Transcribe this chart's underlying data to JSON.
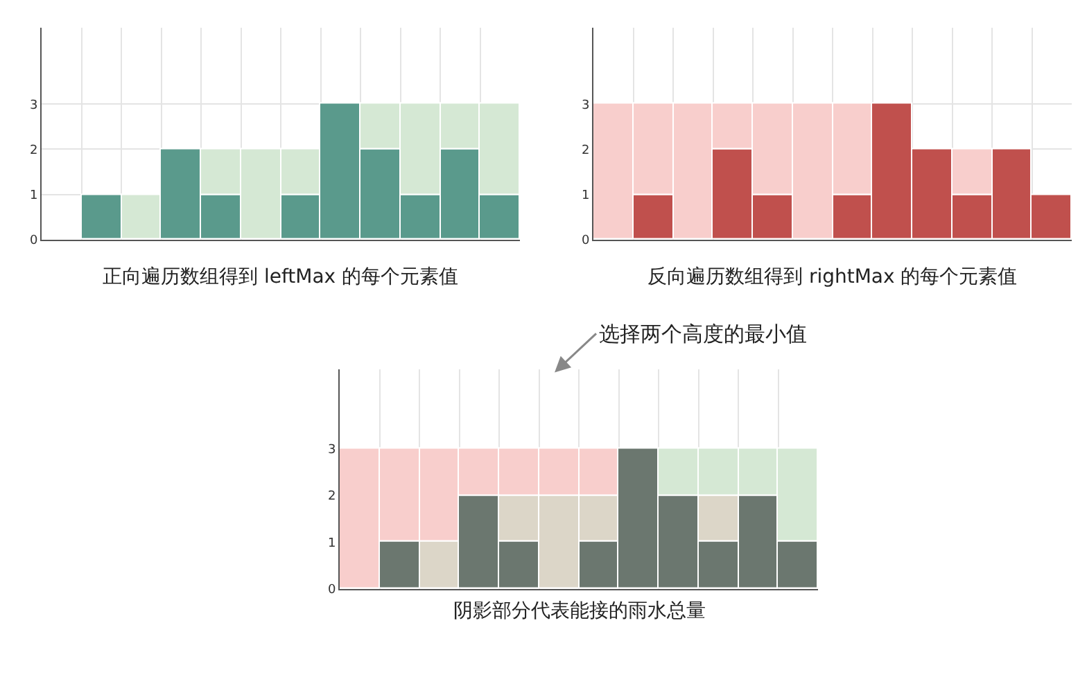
{
  "chart_data": [
    {
      "type": "bar",
      "stacked": true,
      "title": "正向遍历数组得到 leftMax 的每个元素值",
      "categories": [
        null,
        null,
        null,
        null,
        null,
        null,
        null,
        null,
        null,
        null,
        null,
        null
      ],
      "ylim": [
        0,
        4.7
      ],
      "yticks": [
        0,
        1,
        2,
        3
      ],
      "grid": true,
      "tick_labels": "y",
      "series": [
        {
          "color": "#5a9a8c",
          "values": [
            0,
            1,
            0,
            2,
            1,
            0,
            1,
            3,
            2,
            1,
            2,
            1
          ]
        },
        {
          "color": "#d5e8d4",
          "values": [
            0,
            0,
            1,
            0,
            1,
            2,
            1,
            0,
            1,
            2,
            1,
            2
          ]
        }
      ]
    },
    {
      "type": "bar",
      "stacked": true,
      "title": "反向遍历数组得到 rightMax 的每个元素值",
      "categories": [
        null,
        null,
        null,
        null,
        null,
        null,
        null,
        null,
        null,
        null,
        null,
        null
      ],
      "ylim": [
        0,
        4.7
      ],
      "yticks": [
        0,
        1,
        2,
        3
      ],
      "grid": true,
      "tick_labels": "y",
      "series": [
        {
          "color": "#c0504d",
          "values": [
            0,
            1,
            0,
            2,
            1,
            0,
            1,
            3,
            2,
            1,
            2,
            1
          ]
        },
        {
          "color": "#f8cecc",
          "values": [
            3,
            2,
            3,
            1,
            2,
            3,
            2,
            0,
            0,
            1,
            0,
            0
          ]
        }
      ]
    },
    {
      "type": "bar",
      "stacked": true,
      "title": "阴影部分代表能接的雨水总量",
      "annotations": [
        "选择两个高度的最小值"
      ],
      "categories": [
        null,
        null,
        null,
        null,
        null,
        null,
        null,
        null,
        null,
        null,
        null,
        null
      ],
      "ylim": [
        0,
        4.7
      ],
      "yticks": [
        0,
        1,
        2,
        3
      ],
      "grid": true,
      "tick_labels": "y",
      "series": [
        {
          "color": "#6b776f",
          "values": [
            0,
            1,
            0,
            2,
            1,
            0,
            1,
            3,
            2,
            1,
            2,
            1
          ]
        },
        {
          "color": "#dcd6c8",
          "values": [
            0,
            0,
            1,
            0,
            1,
            2,
            1,
            0,
            0,
            1,
            0,
            0
          ]
        },
        {
          "color": "#f8cecc",
          "values": [
            3,
            2,
            2,
            1,
            1,
            1,
            1,
            0,
            0,
            0,
            0,
            0
          ]
        },
        {
          "color": "#d5e8d4",
          "values": [
            0,
            0,
            0,
            0,
            0,
            0,
            0,
            0,
            1,
            1,
            1,
            2
          ]
        }
      ]
    }
  ]
}
